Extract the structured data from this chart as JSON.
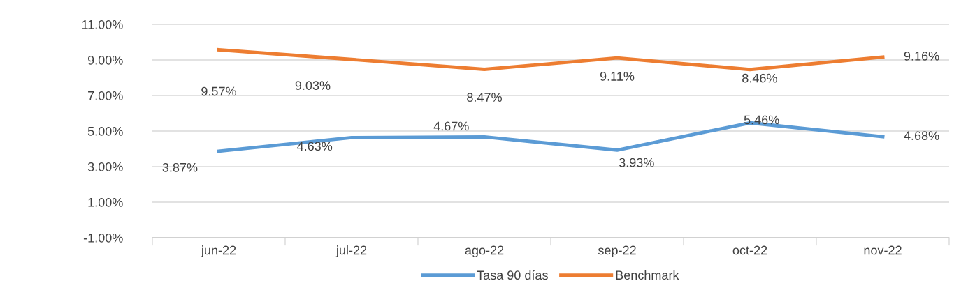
{
  "chart_data": {
    "type": "line",
    "categories": [
      "jun-22",
      "jul-22",
      "ago-22",
      "sep-22",
      "oct-22",
      "nov-22"
    ],
    "series": [
      {
        "name": "Tasa 90 días",
        "color": "#5b9bd5",
        "values": [
          3.87,
          4.63,
          4.67,
          3.93,
          5.46,
          4.68
        ],
        "value_labels": [
          "3.87%",
          "4.63%",
          "4.67%",
          "3.93%",
          "5.46%",
          "4.68%"
        ]
      },
      {
        "name": "Benchmark",
        "color": "#ed7d31",
        "values": [
          9.57,
          9.03,
          8.47,
          9.11,
          8.46,
          9.16
        ],
        "value_labels": [
          "9.57%",
          "9.03%",
          "8.47%",
          "9.11%",
          "8.46%",
          "9.16%"
        ]
      }
    ],
    "ylim": [
      -1,
      11
    ],
    "yticks": [
      {
        "value": -1,
        "label": "-1.00%"
      },
      {
        "value": 1,
        "label": "1.00%"
      },
      {
        "value": 3,
        "label": "3.00%"
      },
      {
        "value": 5,
        "label": "5.00%"
      },
      {
        "value": 7,
        "label": "7.00%"
      },
      {
        "value": 9,
        "label": "9.00%"
      },
      {
        "value": 11,
        "label": "11.00%"
      }
    ],
    "grid": "y",
    "legend": "bottom",
    "marker": "none",
    "line_style": "solid"
  }
}
